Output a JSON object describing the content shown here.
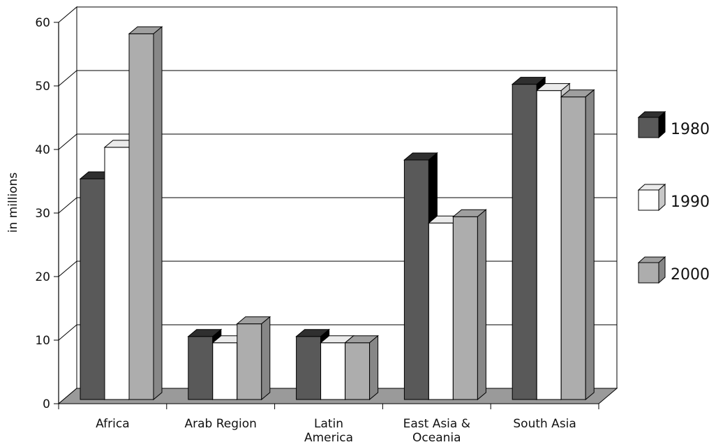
{
  "chart_data": {
    "type": "bar",
    "title": "",
    "xlabel": "",
    "ylabel": "in millions",
    "ylim": [
      0,
      60
    ],
    "yticks": [
      0,
      10,
      20,
      30,
      40,
      50,
      60
    ],
    "grid": true,
    "legend_position": "right",
    "categories": [
      [
        "Africa"
      ],
      [
        "Arab Region"
      ],
      [
        "Latin",
        "America"
      ],
      [
        "East Asia &",
        "Oceania"
      ],
      [
        "South Asia"
      ]
    ],
    "series": [
      {
        "name": "1980",
        "color": "#595959",
        "values": [
          35,
          10,
          10,
          38,
          50
        ]
      },
      {
        "name": "1990",
        "color": "#ffffff",
        "values": [
          40,
          9,
          9,
          28,
          49
        ]
      },
      {
        "name": "2000",
        "color": "#adadad",
        "values": [
          58,
          12,
          9,
          29,
          48
        ]
      }
    ]
  }
}
